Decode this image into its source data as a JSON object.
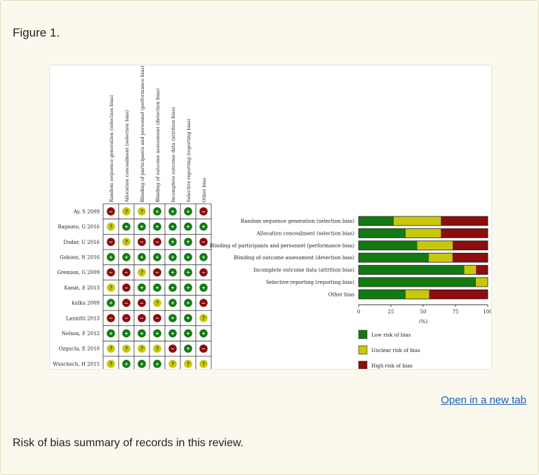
{
  "figure_label": "Figure 1.",
  "open_link": "Open in a new tab",
  "caption": "Risk of bias summary of records in this review.",
  "colors": {
    "low": "#127a12",
    "unclear": "#c8c80a",
    "high": "#8c0d0d"
  },
  "chart_data": [
    {
      "type": "table",
      "columns": [
        "Random sequence generation (selection bias)",
        "Allocation concealment (selection bias)",
        "Blinding of participants and personnel (performance bias)",
        "Blinding of outcome assessment (detection bias)",
        "Incomplete outcome data (attrition bias)",
        "Selective reporting (reporting bias)",
        "Other bias"
      ],
      "rows": [
        {
          "study": "Ay, S 2009",
          "judgements": [
            "high",
            "unclear",
            "unclear",
            "low",
            "low",
            "low",
            "high"
          ]
        },
        {
          "study": "Bagnato, G 2016",
          "judgements": [
            "unclear",
            "low",
            "low",
            "low",
            "low",
            "low",
            "low"
          ]
        },
        {
          "study": "Dudar, U 2016",
          "judgements": [
            "high",
            "unclear",
            "high",
            "high",
            "low",
            "low",
            "high"
          ]
        },
        {
          "study": "Goksen, N 2016",
          "judgements": [
            "low",
            "low",
            "low",
            "low",
            "low",
            "low",
            "low"
          ]
        },
        {
          "study": "Gremion, G 2009",
          "judgements": [
            "high",
            "high",
            "unclear",
            "high",
            "low",
            "low",
            "high"
          ]
        },
        {
          "study": "Kanat, E 2013",
          "judgements": [
            "unclear",
            "high",
            "low",
            "low",
            "low",
            "low",
            "low"
          ]
        },
        {
          "study": "kulku 2009",
          "judgements": [
            "low",
            "high",
            "high",
            "unclear",
            "low",
            "low",
            "high"
          ]
        },
        {
          "study": "Lannitti 2013",
          "judgements": [
            "high",
            "high",
            "high",
            "high",
            "low",
            "low",
            "unclear"
          ]
        },
        {
          "study": "Nelson, F 2012",
          "judgements": [
            "low",
            "low",
            "low",
            "low",
            "low",
            "low",
            "low"
          ]
        },
        {
          "study": "Ozgucla, E 2010",
          "judgements": [
            "unclear",
            "unclear",
            "unclear",
            "unclear",
            "high",
            "low",
            "high"
          ]
        },
        {
          "study": "Wuschech, H 2015",
          "judgements": [
            "unclear",
            "low",
            "low",
            "low",
            "unclear",
            "unclear",
            "unclear"
          ]
        }
      ],
      "symbols": {
        "low": "+",
        "unclear": "?",
        "high": "−"
      }
    },
    {
      "type": "bar",
      "orientation": "horizontal",
      "stacked": true,
      "categories": [
        "Random sequence generation (selection bias)",
        "Allocation concealment (selection bias)",
        "Blinding of participants and personnel (performance bias)",
        "Blinding of outcome assessment (detection bias)",
        "Incomplete outcome data (attrition bias)",
        "Selective reporting (reporting bias)",
        "Other bias"
      ],
      "series": [
        {
          "name": "Low risk of bias",
          "key": "low",
          "values": [
            27.3,
            36.4,
            45.5,
            54.5,
            81.8,
            90.9,
            36.4
          ]
        },
        {
          "name": "Unclear risk of bias",
          "key": "unclear",
          "values": [
            36.4,
            27.3,
            27.3,
            18.2,
            9.1,
            9.1,
            18.2
          ]
        },
        {
          "name": "High risk of bias",
          "key": "high",
          "values": [
            36.4,
            36.4,
            27.3,
            27.3,
            9.1,
            0,
            45.5
          ]
        }
      ],
      "xlim": [
        0,
        100
      ],
      "xticks": [
        "0",
        "25",
        "50",
        "75",
        "100"
      ],
      "xlabel": "(%)",
      "legend_position": "bottom"
    }
  ]
}
